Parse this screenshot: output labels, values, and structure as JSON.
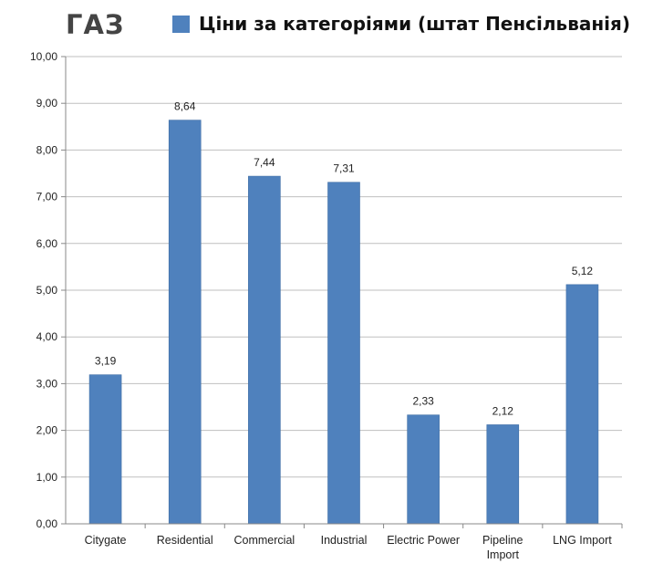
{
  "header": {
    "main_title": "ГАЗ"
  },
  "chart_data": {
    "type": "bar",
    "title": "ГАЗ",
    "legend": {
      "placement": "top",
      "entries": [
        "Ціни за категоріями (штат Пенсільванія)"
      ]
    },
    "categories": [
      "Citygate",
      "Residential",
      "Commercial",
      "Industrial",
      "Electric Power",
      "Pipeline Import",
      "LNG Import"
    ],
    "category_label_lines": [
      [
        "Citygate"
      ],
      [
        "Residential"
      ],
      [
        "Commercial"
      ],
      [
        "Industrial"
      ],
      [
        "Electric Power"
      ],
      [
        "Pipeline",
        "Import"
      ],
      [
        "LNG Import"
      ]
    ],
    "series": [
      {
        "name": "Ціни за категоріями (штат Пенсільванія)",
        "values": [
          3.19,
          8.64,
          7.44,
          7.31,
          2.33,
          2.12,
          5.12
        ],
        "color": "#4F81BD"
      }
    ],
    "data_labels": [
      "3,19",
      "8,64",
      "7,44",
      "7,31",
      "2,33",
      "2,12",
      "5,12"
    ],
    "ylim": [
      0,
      10
    ],
    "yticks": [
      0,
      1,
      2,
      3,
      4,
      5,
      6,
      7,
      8,
      9,
      10
    ],
    "ytick_labels": [
      "0,00",
      "1,00",
      "2,00",
      "3,00",
      "4,00",
      "5,00",
      "6,00",
      "7,00",
      "8,00",
      "9,00",
      "10,00"
    ],
    "grid": true,
    "gridline_color": "#BFBFBF",
    "xlabel": "",
    "ylabel": ""
  }
}
